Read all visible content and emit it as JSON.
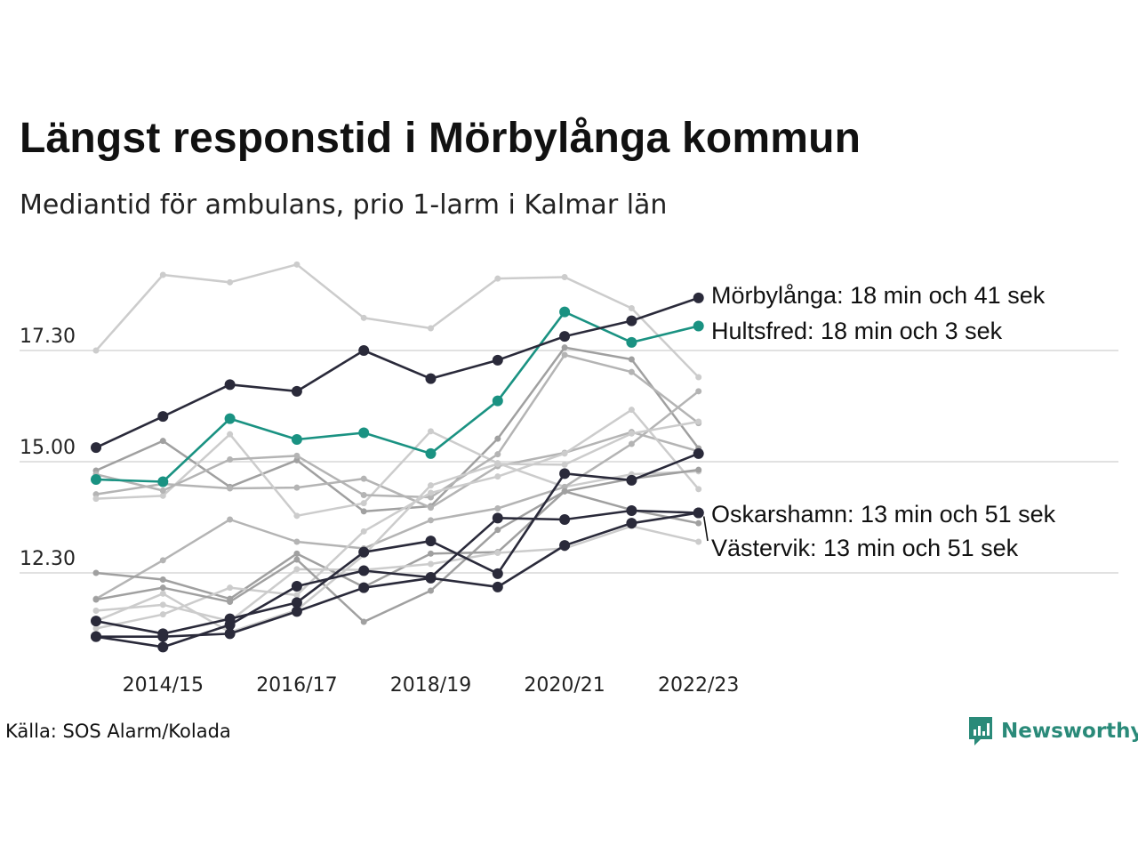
{
  "title": "Längst responstid i Mörbylånga kommun",
  "subtitle": "Mediantid för ambulans, prio 1-larm i Kalmar län",
  "source": "Källa: SOS Alarm/Kolada",
  "brand": "Newsworthy",
  "colors": {
    "dark": "#2a2a3a",
    "teal": "#1a9282",
    "gray1": "#cccccc",
    "gray2": "#b4b4b4",
    "gray3": "#a0a0a0",
    "grid": "#e1e1e1"
  },
  "chart_data": {
    "type": "line",
    "x": [
      "2013/14",
      "2014/15",
      "2015/16",
      "2016/17",
      "2017/18",
      "2018/19",
      "2019/20",
      "2020/21",
      "2021/22",
      "2022/23"
    ],
    "x_tick_labels": [
      "2014/15",
      "2016/17",
      "2018/19",
      "2020/21",
      "2022/23"
    ],
    "y_tick_labels": [
      "12.30",
      "15.00",
      "17.30"
    ],
    "y_tick_values": [
      750,
      900,
      1050
    ],
    "ylim": [
      645,
      1157
    ],
    "y_unit": "seconds",
    "grid": true,
    "series": [
      {
        "style": "gray1",
        "values": [
          1050,
          1152,
          1142,
          1166,
          1094,
          1080,
          1147,
          1149,
          1107,
          1014
        ]
      },
      {
        "style": "gray3",
        "values": [
          888,
          928,
          866,
          902,
          833,
          840,
          931,
          1054,
          1038,
          918
        ]
      },
      {
        "style": "gray2",
        "values": [
          856,
          870,
          864,
          865,
          877,
          838,
          894,
          912,
          940,
          914
        ]
      },
      {
        "style": "gray1",
        "values": [
          850,
          854,
          937,
          827,
          844,
          941,
          898,
          866,
          883,
          887
        ]
      },
      {
        "style": "gray2",
        "values": [
          883,
          861,
          903,
          908,
          855,
          852,
          910,
          1044,
          1021,
          952
        ]
      },
      {
        "style": "gray2",
        "values": [
          715,
          767,
          822,
          792,
          783,
          821,
          837,
          866,
          924,
          995
        ]
      },
      {
        "style": "gray3",
        "values": [
          750,
          741,
          715,
          776,
          731,
          776,
          778,
          860,
          835,
          817
        ]
      },
      {
        "style": "gray1",
        "values": [
          699,
          707,
          685,
          755,
          754,
          762,
          777,
          783,
          813,
          792
        ]
      },
      {
        "style": "gray1",
        "values": [
          675,
          694,
          730,
          720,
          806,
          858,
          880,
          911,
          970,
          863
        ]
      },
      {
        "style": "gray3",
        "values": [
          714,
          730,
          711,
          768,
          684,
          726,
          808,
          860,
          877,
          889
        ]
      },
      {
        "style": "gray1",
        "values": [
          685,
          722,
          670,
          700,
          774,
          868,
          897,
          896,
          938,
          954
        ]
      },
      {
        "style": "dark",
        "values": [
          685,
          668,
          688,
          710,
          778,
          793,
          749,
          884,
          875,
          911
        ]
      },
      {
        "style": "dark",
        "values": [
          664,
          664,
          668,
          698,
          730,
          743,
          731,
          787,
          817,
          831
        ]
      },
      {
        "style": "dark",
        "values": [
          664,
          650,
          680,
          732,
          753,
          744,
          824,
          822,
          834,
          831
        ]
      },
      {
        "name": "Hultsfred: 18 min och 3 sek",
        "style": "teal",
        "values": [
          876,
          873,
          958,
          930,
          939,
          911,
          982,
          1102,
          1061,
          1083
        ]
      },
      {
        "name": "Mörbylånga: 18 min och 41 sek",
        "style": "dark",
        "values": [
          919,
          961,
          1004,
          995,
          1050,
          1012,
          1037,
          1069,
          1090,
          1121
        ]
      }
    ],
    "annotations": [
      {
        "text": "Mörbylånga: 18 min och 41 sek",
        "value": 1121
      },
      {
        "text": "Hultsfred: 18 min och 3 sek",
        "value": 1083
      },
      {
        "text": "Oskarshamn: 13 min och 51 sek",
        "value": 831
      },
      {
        "text": "Västervik: 13 min och 51 sek",
        "value": 831
      }
    ]
  }
}
